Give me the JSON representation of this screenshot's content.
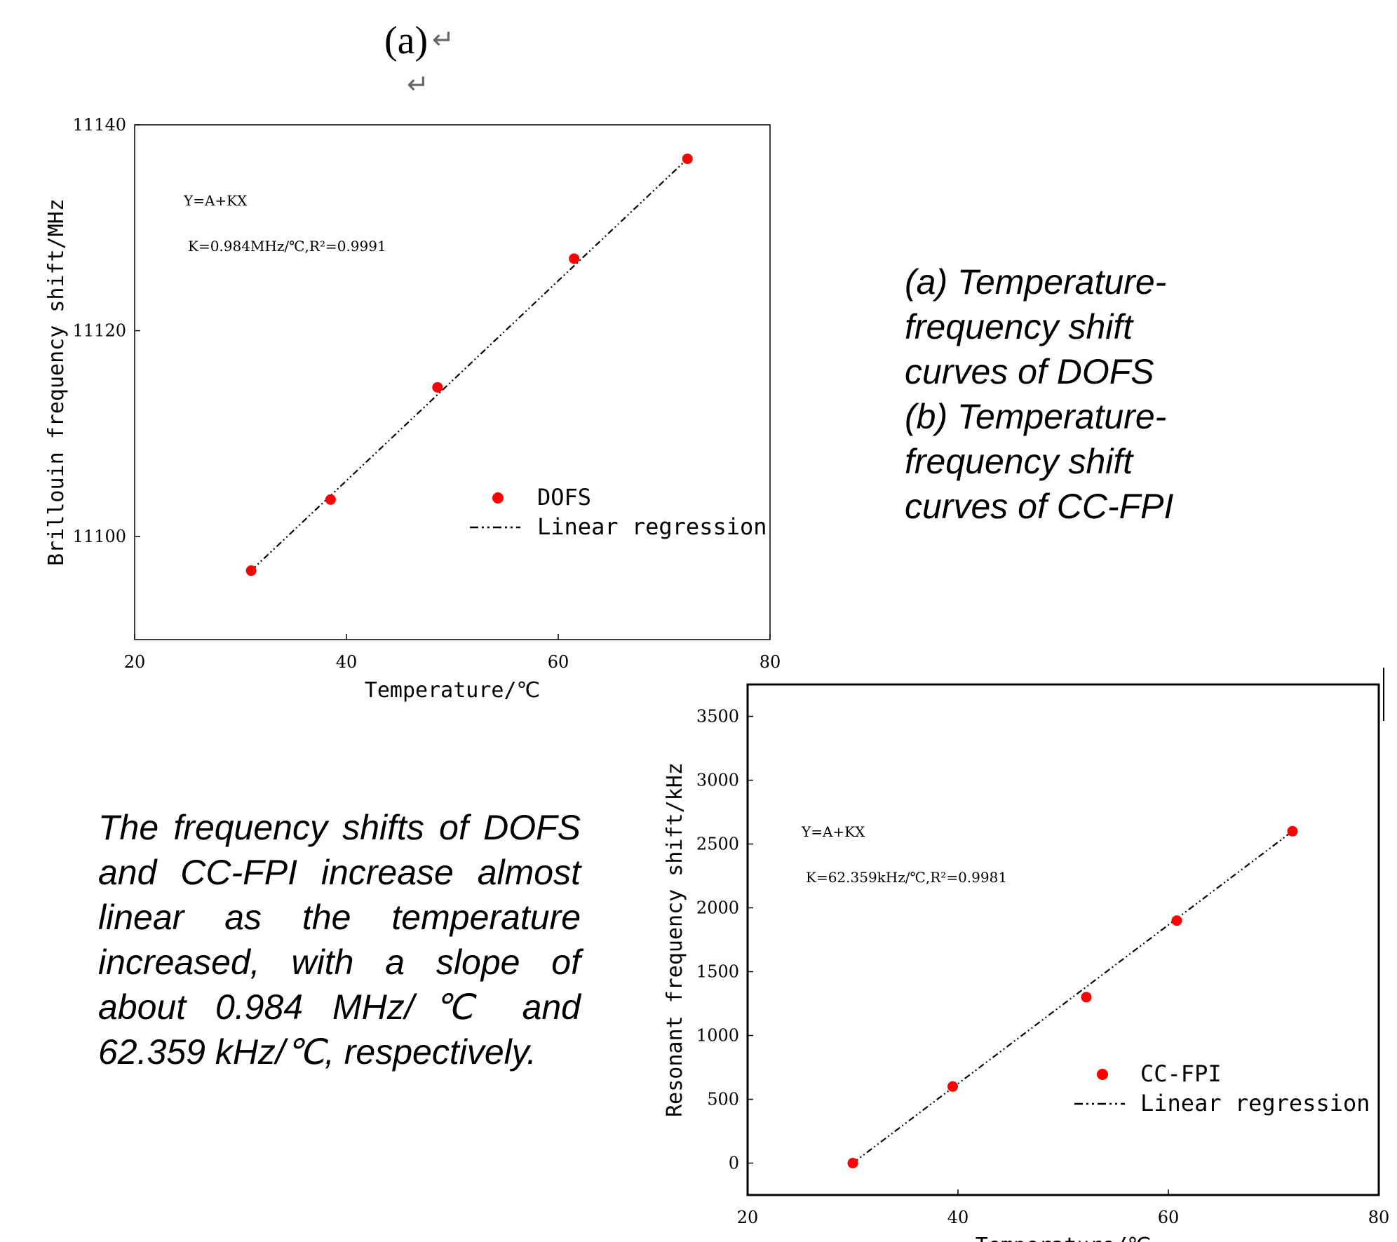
{
  "panel_label": "(a)",
  "caption_lines": [
    "(a) Temperature-",
    "frequency shift",
    "curves of DOFS",
    "(b) Temperature-",
    "frequency shift",
    "curves of CC-FPI"
  ],
  "body_text": "The frequency shifts of DOFS and CC-FPI increase almost linear as the temperature increased, with a slope of about 0.984 MHz/℃ and 62.359 kHz/℃, respectively.",
  "chart_data": [
    {
      "type": "scatter",
      "title": "",
      "xlabel": "Temperature/℃",
      "ylabel": "Brillouin frequency shift/MHz",
      "xlim": [
        20,
        80
      ],
      "ylim": [
        11090,
        11140
      ],
      "xticks": [
        20,
        40,
        60,
        80
      ],
      "yticks": [
        11100,
        11120,
        11140
      ],
      "grid": false,
      "legend_position": "bottom-right",
      "annotation_equation": "Y=A+KX",
      "annotation_fit": "K=0.984MHz/℃,R²=0.9991",
      "series": [
        {
          "name": "DOFS",
          "kind": "points",
          "color": "#ff0000",
          "x": [
            31.0,
            38.5,
            48.6,
            61.5,
            72.2
          ],
          "y": [
            11096.7,
            11103.6,
            11114.5,
            11127.0,
            11136.7
          ]
        },
        {
          "name": "Linear regression",
          "kind": "dash-dot-line",
          "color": "#000000",
          "x": [
            31.0,
            72.2
          ],
          "y": [
            11096.7,
            11136.7
          ]
        }
      ]
    },
    {
      "type": "scatter",
      "title": "",
      "xlabel": "Temperature/℃",
      "ylabel": "Resonant frequency shift/kHz",
      "xlim": [
        20,
        80
      ],
      "ylim": [
        -250,
        3750
      ],
      "xticks": [
        20,
        40,
        60,
        80
      ],
      "yticks": [
        0,
        500,
        1000,
        1500,
        2000,
        2500,
        3000,
        3500
      ],
      "grid": false,
      "legend_position": "bottom-right",
      "annotation_equation": "Y=A+KX",
      "annotation_fit": "K=62.359kHz/℃,R²=0.9981",
      "series": [
        {
          "name": "CC-FPI",
          "kind": "points",
          "color": "#ff0000",
          "x": [
            30.0,
            39.5,
            52.2,
            60.8,
            71.8
          ],
          "y": [
            0,
            600,
            1300,
            1900,
            2600
          ]
        },
        {
          "name": "Linear regression",
          "kind": "dash-dot-line",
          "color": "#000000",
          "x": [
            30.0,
            71.8
          ],
          "y": [
            0,
            2600
          ]
        }
      ]
    }
  ]
}
